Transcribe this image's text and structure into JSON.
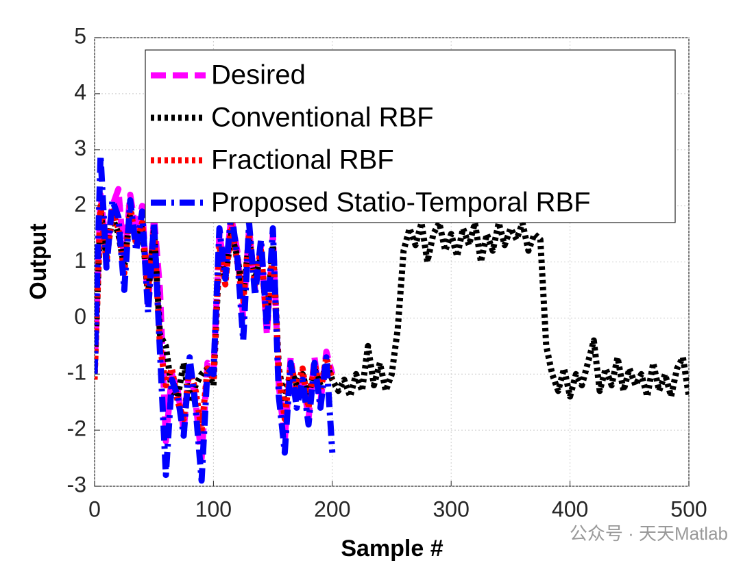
{
  "chart_data": {
    "type": "line",
    "xlabel": "Sample #",
    "ylabel": "Output",
    "xlim": [
      0,
      500
    ],
    "ylim": [
      -3,
      5
    ],
    "xticks": [
      0,
      100,
      200,
      300,
      400,
      500
    ],
    "yticks": [
      -3,
      -2,
      -1,
      0,
      1,
      2,
      3,
      4,
      5
    ],
    "grid": true,
    "legend": "upper right",
    "watermark": "公众号 · 天天Matlab",
    "x": [
      0,
      5,
      10,
      15,
      20,
      25,
      30,
      35,
      40,
      45,
      50,
      55,
      60,
      65,
      70,
      75,
      80,
      85,
      90,
      95,
      100,
      105,
      110,
      115,
      120,
      125,
      130,
      135,
      140,
      145,
      150,
      155,
      160,
      165,
      170,
      175,
      180,
      185,
      190,
      195,
      200,
      205,
      210,
      215,
      220,
      225,
      230,
      235,
      240,
      245,
      250,
      255,
      260,
      265,
      270,
      275,
      280,
      285,
      290,
      295,
      300,
      305,
      310,
      315,
      320,
      325,
      330,
      335,
      340,
      345,
      350,
      355,
      360,
      365,
      370,
      375,
      380,
      385,
      390,
      395,
      400,
      405,
      410,
      415,
      420,
      425,
      430,
      435,
      440,
      445,
      450,
      455,
      460,
      465,
      470,
      475,
      480,
      485,
      490,
      495,
      500
    ],
    "series": [
      {
        "name": "Desired",
        "color": "#ff00ff",
        "linestyle": "dashed",
        "values": [
          -1,
          2.2,
          1.2,
          2.0,
          2.3,
          1.0,
          2.2,
          1.5,
          2.0,
          0.2,
          1.8,
          0.5,
          -2.2,
          -1.0,
          -1.3,
          -2.0,
          -0.8,
          -1.5,
          -2.5,
          -0.8,
          -1.0,
          1.5,
          0.8,
          1.8,
          1.2,
          0.0,
          1.6,
          0.5,
          1.3,
          -0.3,
          1.5,
          -1.2,
          -2.2,
          -0.7,
          -1.5,
          -1.0,
          -1.8,
          -0.7,
          -1.5,
          -0.6,
          -1.0,
          null,
          null,
          null,
          null,
          null,
          null,
          null,
          null,
          null,
          null,
          null,
          null,
          null,
          null,
          null,
          null,
          null,
          null,
          null,
          null,
          null,
          null,
          null,
          null,
          null,
          null,
          null,
          null,
          null,
          null,
          null,
          null,
          null,
          null,
          null,
          null,
          null,
          null,
          null,
          null,
          null,
          null,
          null,
          null,
          null,
          null,
          null,
          null,
          null,
          null,
          null,
          null,
          null,
          null,
          null,
          null,
          null,
          null,
          null,
          null
        ]
      },
      {
        "name": "Conventional RBF",
        "color": "#000000",
        "linestyle": "dotted",
        "values": [
          -1.0,
          1.9,
          1.1,
          1.8,
          1.5,
          0.9,
          1.9,
          1.4,
          1.6,
          0.4,
          1.6,
          -0.3,
          -0.5,
          -1.3,
          -1.4,
          -0.8,
          -1.5,
          -1.2,
          -1.0,
          -0.9,
          -1.2,
          1.2,
          0.7,
          1.5,
          1.1,
          0.4,
          1.4,
          0.7,
          1.1,
          0.0,
          1.3,
          -0.9,
          -1.5,
          -0.9,
          -1.2,
          -1.0,
          -1.4,
          -0.9,
          -1.2,
          -0.8,
          -1.1,
          -1.3,
          -1.1,
          -1.4,
          -1.0,
          -1.3,
          -0.5,
          -1.2,
          -0.8,
          -1.3,
          -1.0,
          -0.2,
          1.2,
          1.6,
          1.3,
          1.7,
          1.0,
          1.5,
          1.7,
          1.2,
          1.5,
          1.1,
          1.6,
          1.3,
          1.7,
          1.0,
          1.5,
          1.2,
          1.7,
          1.3,
          1.6,
          1.4,
          1.7,
          1.2,
          1.5,
          1.4,
          -0.5,
          -1.0,
          -1.3,
          -0.9,
          -1.4,
          -1.0,
          -1.2,
          -0.8,
          -0.4,
          -1.3,
          -0.9,
          -1.2,
          -0.7,
          -1.3,
          -0.9,
          -1.2,
          -1.0,
          -1.4,
          -0.8,
          -1.3,
          -1.0,
          -1.4,
          -0.9,
          -0.7,
          -1.4
        ]
      },
      {
        "name": "Fractional RBF",
        "color": "#ff0000",
        "linestyle": "dotted",
        "values": [
          -1.1,
          2.0,
          1.0,
          1.9,
          1.6,
          0.8,
          2.0,
          1.3,
          1.7,
          0.5,
          1.6,
          -0.5,
          -1.2,
          -0.9,
          -1.5,
          -1.8,
          -0.9,
          -1.3,
          -2.0,
          -0.9,
          -1.1,
          1.3,
          0.6,
          1.7,
          1.0,
          0.3,
          1.5,
          0.6,
          1.2,
          -0.1,
          1.2,
          -1.0,
          -1.8,
          -0.8,
          -1.3,
          -0.9,
          -1.6,
          -0.8,
          -1.3,
          -0.7,
          -1.1,
          null,
          null,
          null,
          null,
          null,
          null,
          null,
          null,
          null,
          null,
          null,
          null,
          null,
          null,
          null,
          null,
          null,
          null,
          null,
          null,
          null,
          null,
          null,
          null,
          null,
          null,
          null,
          null,
          null,
          null,
          null,
          null,
          null,
          null,
          null,
          null,
          null,
          null,
          null,
          null,
          null,
          null,
          null,
          null,
          null,
          null,
          null,
          null,
          null,
          null,
          null,
          null,
          null,
          null,
          null,
          null,
          null,
          null,
          null,
          null
        ]
      },
      {
        "name": "Proposed Statio-Temporal RBF",
        "color": "#0000ff",
        "linestyle": "dashdot",
        "values": [
          -1.0,
          2.9,
          0.9,
          2.1,
          1.8,
          0.5,
          2.1,
          1.2,
          1.9,
          0.1,
          1.7,
          -0.6,
          -2.8,
          -1.1,
          -1.4,
          -2.1,
          -0.7,
          -1.6,
          -2.9,
          -0.9,
          -1.0,
          1.6,
          0.7,
          1.9,
          1.1,
          -0.4,
          1.7,
          0.4,
          1.4,
          -0.2,
          1.6,
          -1.4,
          -2.4,
          -0.8,
          -1.6,
          -1.1,
          -1.9,
          -0.8,
          -1.6,
          -0.7,
          -2.4,
          null,
          null,
          null,
          null,
          null,
          null,
          null,
          null,
          null,
          null,
          null,
          null,
          null,
          null,
          null,
          null,
          null,
          null,
          null,
          null,
          null,
          null,
          null,
          null,
          null,
          null,
          null,
          null,
          null,
          null,
          null,
          null,
          null,
          null,
          null,
          null,
          null,
          null,
          null,
          null,
          null,
          null,
          null,
          null,
          null,
          null,
          null,
          null,
          null,
          null,
          null,
          null,
          null,
          null,
          null,
          null,
          null,
          null,
          null,
          null
        ]
      }
    ]
  }
}
